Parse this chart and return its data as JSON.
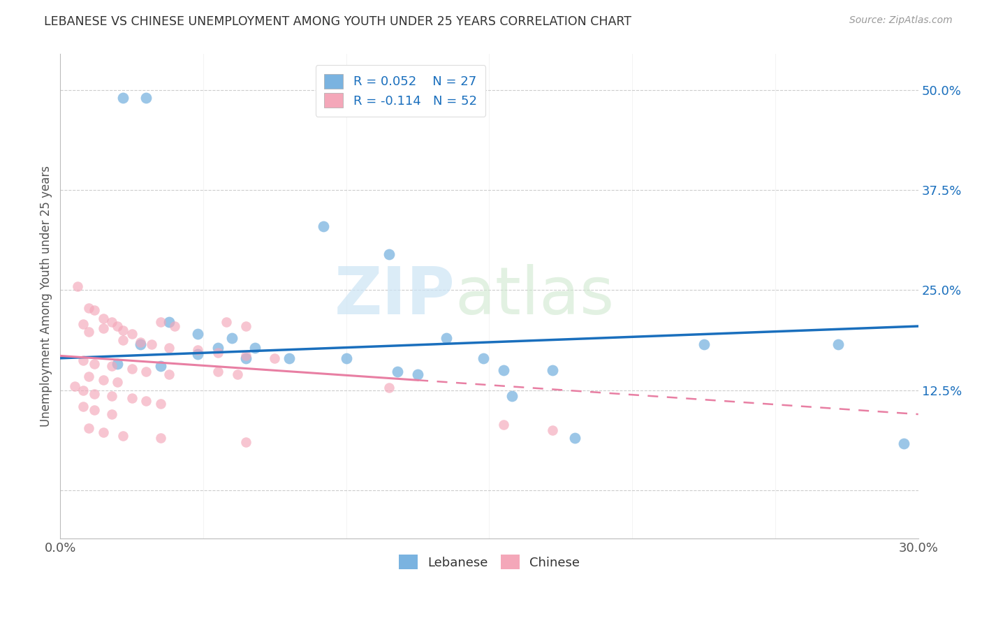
{
  "title": "LEBANESE VS CHINESE UNEMPLOYMENT AMONG YOUTH UNDER 25 YEARS CORRELATION CHART",
  "source": "Source: ZipAtlas.com",
  "ylabel": "Unemployment Among Youth under 25 years",
  "xlim": [
    0.0,
    0.3
  ],
  "ylim": [
    -0.06,
    0.545
  ],
  "lebanese_color": "#7ab3e0",
  "chinese_color": "#f4a7b9",
  "trendline_lebanese_color": "#1a6fbd",
  "trendline_chinese_color": "#e87fa3",
  "lebanese_trendline": [
    0.165,
    0.205
  ],
  "chinese_trendline": [
    0.168,
    0.095
  ],
  "lebanese_points": [
    [
      0.022,
      0.49
    ],
    [
      0.03,
      0.49
    ],
    [
      0.092,
      0.33
    ],
    [
      0.115,
      0.295
    ],
    [
      0.038,
      0.21
    ],
    [
      0.048,
      0.195
    ],
    [
      0.06,
      0.19
    ],
    [
      0.028,
      0.182
    ],
    [
      0.055,
      0.178
    ],
    [
      0.068,
      0.178
    ],
    [
      0.135,
      0.19
    ],
    [
      0.048,
      0.17
    ],
    [
      0.065,
      0.165
    ],
    [
      0.08,
      0.165
    ],
    [
      0.1,
      0.165
    ],
    [
      0.148,
      0.165
    ],
    [
      0.02,
      0.158
    ],
    [
      0.035,
      0.155
    ],
    [
      0.118,
      0.148
    ],
    [
      0.125,
      0.145
    ],
    [
      0.155,
      0.15
    ],
    [
      0.172,
      0.15
    ],
    [
      0.225,
      0.182
    ],
    [
      0.272,
      0.182
    ],
    [
      0.158,
      0.118
    ],
    [
      0.18,
      0.065
    ],
    [
      0.295,
      0.058
    ]
  ],
  "chinese_points": [
    [
      0.006,
      0.255
    ],
    [
      0.01,
      0.228
    ],
    [
      0.012,
      0.225
    ],
    [
      0.015,
      0.215
    ],
    [
      0.018,
      0.21
    ],
    [
      0.008,
      0.208
    ],
    [
      0.02,
      0.205
    ],
    [
      0.015,
      0.202
    ],
    [
      0.022,
      0.2
    ],
    [
      0.01,
      0.198
    ],
    [
      0.025,
      0.195
    ],
    [
      0.035,
      0.21
    ],
    [
      0.04,
      0.205
    ],
    [
      0.058,
      0.21
    ],
    [
      0.065,
      0.205
    ],
    [
      0.022,
      0.188
    ],
    [
      0.028,
      0.185
    ],
    [
      0.032,
      0.182
    ],
    [
      0.038,
      0.178
    ],
    [
      0.048,
      0.175
    ],
    [
      0.055,
      0.172
    ],
    [
      0.065,
      0.168
    ],
    [
      0.075,
      0.165
    ],
    [
      0.008,
      0.162
    ],
    [
      0.012,
      0.158
    ],
    [
      0.018,
      0.155
    ],
    [
      0.025,
      0.152
    ],
    [
      0.03,
      0.148
    ],
    [
      0.038,
      0.145
    ],
    [
      0.01,
      0.142
    ],
    [
      0.015,
      0.138
    ],
    [
      0.02,
      0.135
    ],
    [
      0.055,
      0.148
    ],
    [
      0.062,
      0.145
    ],
    [
      0.005,
      0.13
    ],
    [
      0.008,
      0.125
    ],
    [
      0.012,
      0.12
    ],
    [
      0.018,
      0.118
    ],
    [
      0.025,
      0.115
    ],
    [
      0.03,
      0.112
    ],
    [
      0.035,
      0.108
    ],
    [
      0.008,
      0.105
    ],
    [
      0.012,
      0.1
    ],
    [
      0.018,
      0.095
    ],
    [
      0.115,
      0.128
    ],
    [
      0.155,
      0.082
    ],
    [
      0.172,
      0.075
    ],
    [
      0.01,
      0.078
    ],
    [
      0.015,
      0.072
    ],
    [
      0.022,
      0.068
    ],
    [
      0.035,
      0.065
    ],
    [
      0.065,
      0.06
    ]
  ]
}
